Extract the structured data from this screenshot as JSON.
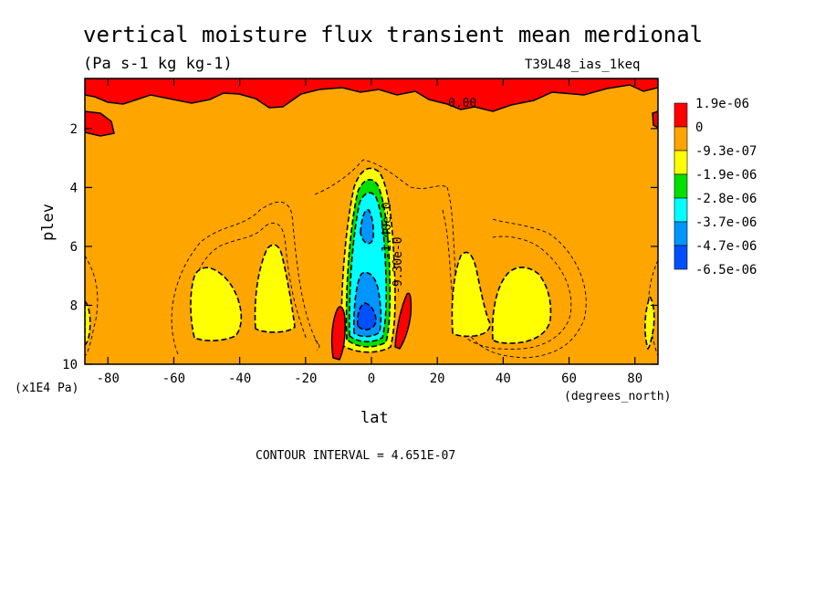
{
  "chart_data": {
    "type": "heatmap",
    "title": "vertical moisture flux transient mean merdional",
    "units": "(Pa s-1 kg kg-1)",
    "dataset": "T39L48_ias_1keq",
    "xlabel": "lat",
    "xunits": "(degrees_north)",
    "ylabel": "plev",
    "yunits": "(x1E4 Pa)",
    "xlim": [
      -87,
      87
    ],
    "ylim": [
      0.3,
      10
    ],
    "y_inverted": true,
    "x_ticks": [
      "-80",
      "-60",
      "-40",
      "-20",
      "0",
      "20",
      "40",
      "60",
      "80"
    ],
    "x_tick_values": [
      -80,
      -60,
      -40,
      -20,
      0,
      20,
      40,
      60,
      80
    ],
    "y_ticks": [
      "2",
      "4",
      "6",
      "8",
      "10"
    ],
    "y_tick_values": [
      2,
      4,
      6,
      8,
      10
    ],
    "colorbar": {
      "labels": [
        "1.9e-06",
        "0",
        "-9.3e-07",
        "-1.9e-06",
        "-2.8e-06",
        "-3.7e-06",
        "-4.7e-06",
        "-6.5e-06"
      ],
      "colors": [
        "#ff0000",
        "#ffa500",
        "#ffff00",
        "#00e000",
        "#00ffff",
        "#0095ff",
        "#0050ff"
      ]
    },
    "contour_labels": [
      "0.00",
      "-1.40e-0",
      "-9.30e-0"
    ],
    "contour_interval_label": "CONTOUR INTERVAL = 4.651E-07"
  }
}
